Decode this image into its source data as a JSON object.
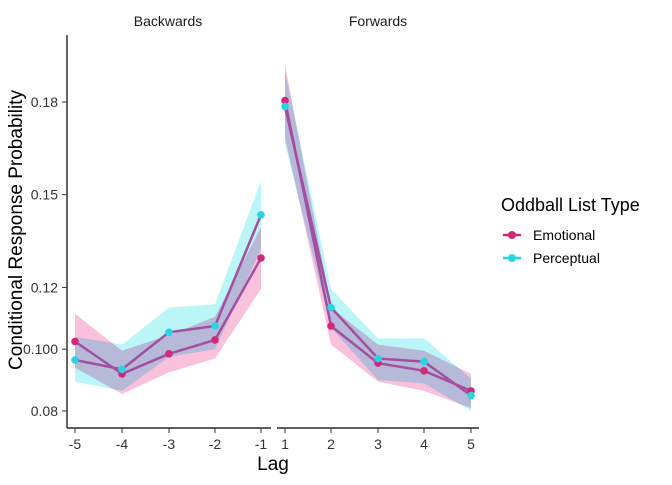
{
  "chart_data": {
    "type": "line",
    "ylabel": "Conditional Response Probability",
    "xlabel": "Lag",
    "ylim": [
      0.077,
      0.192
    ],
    "y_ticks": [
      0.08,
      0.1,
      0.12,
      0.15,
      0.18
    ],
    "y_tick_labels": [
      "0.08",
      "0.100",
      "0.12",
      "0.15",
      "0.18"
    ],
    "legend": {
      "title": "Oddball List Type",
      "position": "right"
    },
    "grid": false,
    "panels": [
      {
        "title": "Backwards",
        "x": [
          -5,
          -4,
          -3,
          -2,
          -1
        ],
        "x_tick_labels": [
          "-5",
          "-4",
          "-3",
          "-2",
          "-1"
        ],
        "series": [
          {
            "name": "Emotional",
            "color": "#d1287e",
            "ribbon": "#f9b2d4",
            "values": [
              0.1025,
              0.092,
              0.0985,
              0.103,
              0.1295
            ],
            "lower": [
              0.094,
              0.0855,
              0.0925,
              0.097,
              0.1195
            ],
            "upper": [
              0.1115,
              0.0995,
              0.1045,
              0.1105,
              0.1395
            ]
          },
          {
            "name": "Perceptual",
            "color": "#28d5e0",
            "ribbon": "#a9f2f6",
            "values": [
              0.0965,
              0.0935,
              0.1055,
              0.1075,
              0.1435
            ],
            "lower": [
              0.0895,
              0.0865,
              0.0975,
              0.1,
              0.1325
            ],
            "upper": [
              0.104,
              0.1015,
              0.1135,
              0.1145,
              0.1545
            ]
          }
        ]
      },
      {
        "title": "Forwards",
        "x": [
          1,
          2,
          3,
          4,
          5
        ],
        "x_tick_labels": [
          "1",
          "2",
          "3",
          "4",
          "5"
        ],
        "series": [
          {
            "name": "Emotional",
            "color": "#d1287e",
            "ribbon": "#f9b2d4",
            "values": [
              0.1805,
              0.1075,
              0.0955,
              0.093,
              0.0865
            ],
            "lower": [
              0.1685,
              0.1015,
              0.0895,
              0.0865,
              0.081
            ],
            "upper": [
              0.192,
              0.1135,
              0.1015,
              0.0995,
              0.092
            ]
          },
          {
            "name": "Perceptual",
            "color": "#28d5e0",
            "ribbon": "#a9f2f6",
            "values": [
              0.1785,
              0.1135,
              0.097,
              0.096,
              0.085
            ],
            "lower": [
              0.1665,
              0.107,
              0.09,
              0.089,
              0.08
            ],
            "upper": [
              0.19,
              0.1195,
              0.1035,
              0.1035,
              0.0905
            ]
          }
        ]
      }
    ]
  },
  "overlap_color": "#b4bbd9",
  "mean_line_color": "#a34fa1",
  "legend_items": [
    {
      "label": "Emotional",
      "color": "#d1287e"
    },
    {
      "label": "Perceptual",
      "color": "#28d5e0"
    }
  ]
}
